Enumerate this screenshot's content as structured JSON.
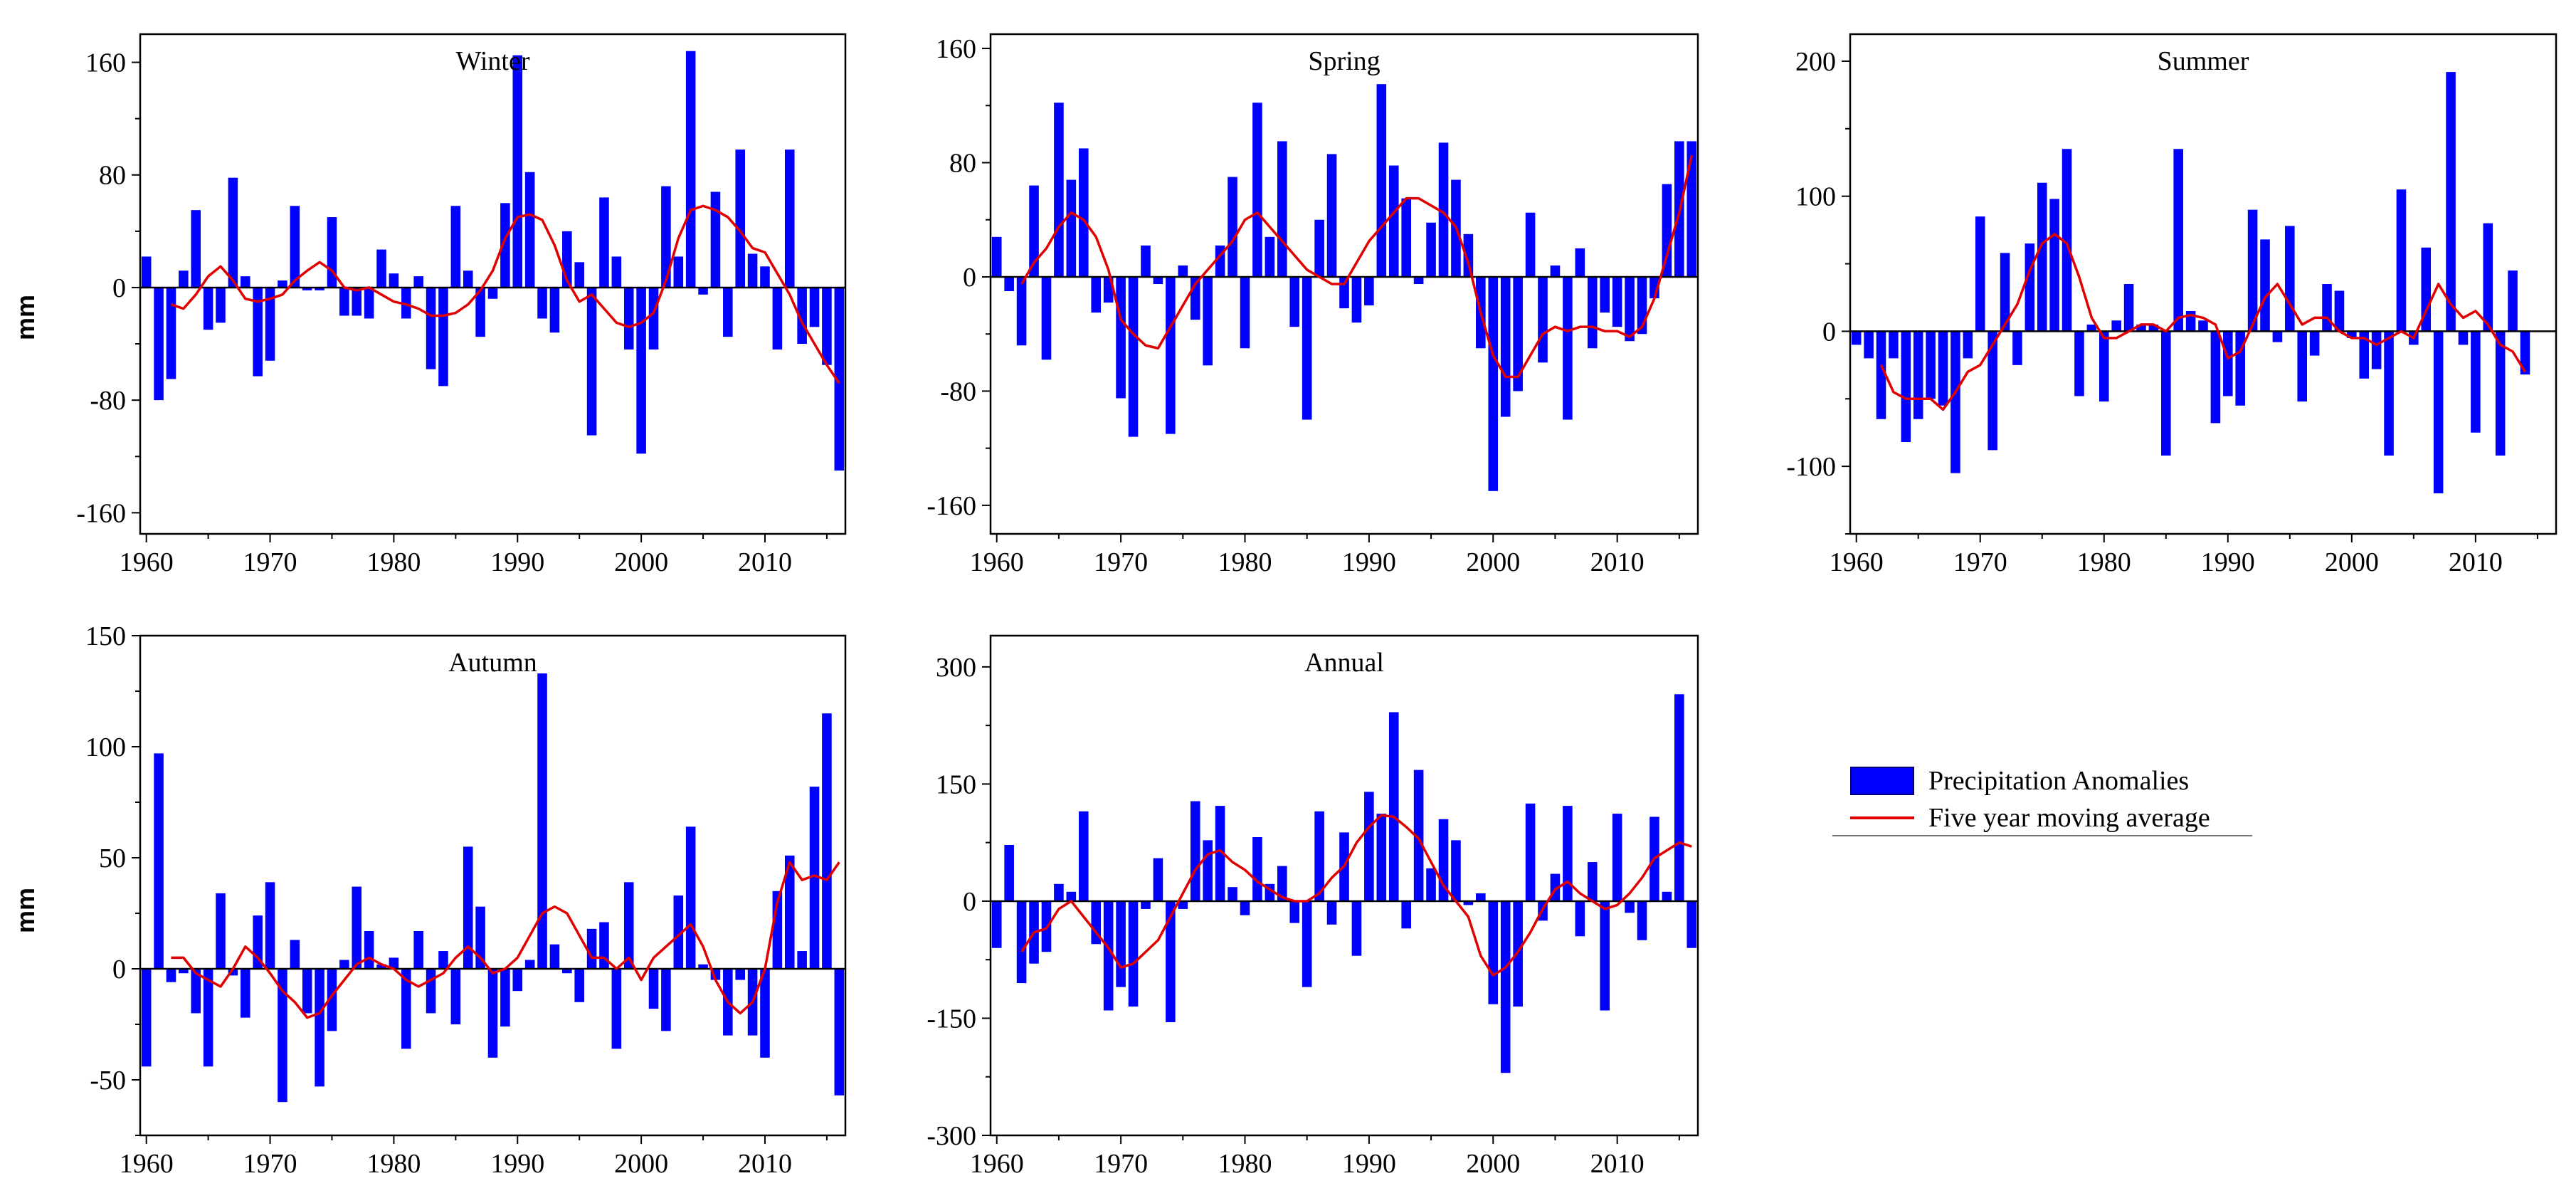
{
  "figure": {
    "ylabel_top": "mm",
    "ylabel_bottom": "mm",
    "bar_color": "#0000ff",
    "line_color": "#e00000",
    "legend": {
      "bars_label": "Precipitation Anomalies",
      "line_label": "Five year moving average"
    }
  },
  "chart_data": [
    {
      "type": "bar",
      "title": "Winter",
      "xlabel": "",
      "ylabel": "mm",
      "xlim": [
        1959.5,
        2016.5
      ],
      "ylim": [
        -175,
        180
      ],
      "yticks": [
        -160,
        -80,
        0,
        80,
        160
      ],
      "xticks": [
        1960,
        1970,
        1980,
        1990,
        2000,
        2010
      ],
      "start_year": 1960,
      "values": [
        22,
        -80,
        -65,
        12,
        55,
        -30,
        -25,
        78,
        8,
        -63,
        -52,
        5,
        58,
        -2,
        -2,
        50,
        -20,
        -20,
        -22,
        27,
        10,
        -22,
        8,
        -58,
        -70,
        58,
        12,
        -35,
        -8,
        60,
        165,
        82,
        -22,
        -32,
        40,
        18,
        -105,
        64,
        22,
        -44,
        -118,
        -44,
        72,
        22,
        168,
        -5,
        68,
        -35,
        98,
        24,
        15,
        -44,
        98,
        -40,
        -28,
        -55,
        -130
      ],
      "moving_average": [
        null,
        null,
        -12,
        -15,
        -5,
        8,
        15,
        5,
        -8,
        -10,
        -8,
        -5,
        5,
        12,
        18,
        12,
        0,
        -2,
        0,
        -5,
        -10,
        -12,
        -15,
        -20,
        -20,
        -18,
        -12,
        -2,
        12,
        35,
        50,
        52,
        48,
        30,
        5,
        -10,
        -5,
        -15,
        -25,
        -28,
        -25,
        -18,
        5,
        35,
        55,
        58,
        55,
        50,
        40,
        28,
        25,
        10,
        -5,
        -25,
        -40,
        -55,
        -68
      ]
    },
    {
      "type": "bar",
      "title": "Spring",
      "xlabel": "",
      "ylabel": "",
      "xlim": [
        1959.5,
        2016.5
      ],
      "ylim": [
        -180,
        170
      ],
      "yticks": [
        -160,
        -80,
        0,
        80,
        160
      ],
      "xticks": [
        1960,
        1970,
        1980,
        1990,
        2000,
        2010
      ],
      "start_year": 1960,
      "values": [
        28,
        -10,
        -48,
        64,
        -58,
        122,
        68,
        90,
        -25,
        -18,
        -85,
        -112,
        22,
        -5,
        -110,
        8,
        -30,
        -62,
        22,
        70,
        -50,
        122,
        28,
        95,
        -35,
        -100,
        40,
        86,
        -22,
        -32,
        -20,
        135,
        78,
        55,
        -5,
        38,
        94,
        68,
        30,
        -50,
        -150,
        -98,
        -80,
        45,
        -60,
        8,
        -100,
        20,
        -50,
        -25,
        -35,
        -45,
        -40,
        -15,
        65,
        95,
        95
      ],
      "moving_average": [
        null,
        null,
        -5,
        10,
        20,
        35,
        45,
        40,
        28,
        5,
        -30,
        -40,
        -48,
        -50,
        -35,
        -20,
        -5,
        5,
        15,
        25,
        40,
        45,
        35,
        25,
        15,
        5,
        0,
        -5,
        -5,
        10,
        25,
        35,
        45,
        55,
        55,
        50,
        45,
        35,
        10,
        -25,
        -55,
        -70,
        -70,
        -55,
        -40,
        -35,
        -38,
        -35,
        -35,
        -38,
        -38,
        -42,
        -35,
        -15,
        15,
        45,
        85
      ]
    },
    {
      "type": "bar",
      "title": "Summer",
      "xlabel": "",
      "ylabel": "",
      "xlim": [
        1959.5,
        2016.5
      ],
      "ylim": [
        -150,
        220
      ],
      "yticks": [
        -100,
        0,
        100,
        200
      ],
      "xticks": [
        1960,
        1970,
        1980,
        1990,
        2000,
        2010
      ],
      "start_year": 1960,
      "values": [
        -10,
        -20,
        -65,
        -20,
        -82,
        -65,
        -50,
        -55,
        -105,
        -20,
        85,
        -88,
        58,
        -25,
        65,
        110,
        98,
        135,
        -48,
        5,
        -52,
        8,
        35,
        5,
        5,
        -92,
        135,
        15,
        8,
        -68,
        -48,
        -55,
        90,
        68,
        -8,
        78,
        -52,
        -18,
        35,
        30,
        -5,
        -35,
        -28,
        -92,
        105,
        -10,
        62,
        -120,
        192,
        -10,
        -75,
        80,
        -92,
        45,
        -32
      ],
      "moving_average": [
        null,
        null,
        -25,
        -45,
        -50,
        -50,
        -50,
        -58,
        -45,
        -30,
        -25,
        -10,
        5,
        20,
        45,
        65,
        72,
        65,
        40,
        10,
        -5,
        -5,
        0,
        5,
        5,
        0,
        10,
        12,
        10,
        5,
        -20,
        -15,
        5,
        25,
        35,
        20,
        5,
        10,
        10,
        0,
        -5,
        -5,
        -10,
        -5,
        0,
        -5,
        15,
        35,
        20,
        10,
        15,
        5,
        -10,
        -15,
        -30
      ]
    },
    {
      "type": "bar",
      "title": "Autumn",
      "xlabel": "",
      "ylabel": "mm",
      "xlim": [
        1959.5,
        2016.5
      ],
      "ylim": [
        -75,
        150
      ],
      "yticks": [
        -50,
        0,
        50,
        100,
        150
      ],
      "xticks": [
        1960,
        1970,
        1980,
        1990,
        2000,
        2010
      ],
      "start_year": 1960,
      "values": [
        -44,
        97,
        -6,
        -2,
        -20,
        -44,
        34,
        -3,
        -22,
        24,
        39,
        -60,
        13,
        -20,
        -53,
        -28,
        4,
        37,
        17,
        2,
        5,
        -36,
        17,
        -20,
        8,
        -25,
        55,
        28,
        -40,
        -26,
        -10,
        4,
        133,
        11,
        -2,
        -15,
        18,
        21,
        -36,
        39,
        0,
        -18,
        -28,
        33,
        64,
        2,
        -5,
        -30,
        -5,
        -30,
        -40,
        35,
        51,
        8,
        82,
        115,
        -57
      ],
      "moving_average": [
        null,
        null,
        5,
        5,
        -2,
        -5,
        -8,
        0,
        10,
        5,
        -2,
        -10,
        -15,
        -22,
        -20,
        -12,
        -5,
        2,
        5,
        2,
        0,
        -5,
        -8,
        -5,
        -2,
        5,
        10,
        5,
        -2,
        0,
        5,
        15,
        25,
        28,
        25,
        15,
        5,
        5,
        0,
        5,
        -5,
        5,
        10,
        15,
        20,
        10,
        -5,
        -15,
        -20,
        -15,
        0,
        30,
        48,
        40,
        42,
        40,
        48
      ]
    },
    {
      "type": "bar",
      "title": "Annual",
      "xlabel": "",
      "ylabel": "",
      "xlim": [
        1959.5,
        2016.5
      ],
      "ylim": [
        -300,
        340
      ],
      "yticks": [
        -300,
        -150,
        0,
        150,
        300
      ],
      "xticks": [
        1960,
        1970,
        1980,
        1990,
        2000,
        2010
      ],
      "start_year": 1960,
      "values": [
        -60,
        72,
        -105,
        -80,
        -65,
        22,
        12,
        115,
        -55,
        -140,
        -110,
        -135,
        -10,
        55,
        -155,
        -10,
        128,
        78,
        122,
        18,
        -18,
        82,
        22,
        45,
        -28,
        -110,
        115,
        -30,
        88,
        -70,
        140,
        112,
        242,
        -35,
        168,
        42,
        105,
        78,
        -5,
        10,
        -132,
        -220,
        -135,
        125,
        -25,
        35,
        122,
        -45,
        50,
        -140,
        112,
        -15,
        -50,
        108,
        12,
        265,
        -60
      ],
      "moving_average": [
        null,
        null,
        -65,
        -40,
        -35,
        -10,
        0,
        -20,
        -40,
        -60,
        -85,
        -80,
        -65,
        -50,
        -20,
        10,
        40,
        60,
        65,
        50,
        40,
        25,
        15,
        5,
        0,
        0,
        10,
        30,
        45,
        75,
        95,
        110,
        108,
        95,
        80,
        50,
        20,
        0,
        -20,
        -70,
        -95,
        -85,
        -65,
        -40,
        -10,
        15,
        25,
        10,
        0,
        -10,
        -5,
        10,
        30,
        55,
        65,
        75,
        70
      ]
    }
  ]
}
